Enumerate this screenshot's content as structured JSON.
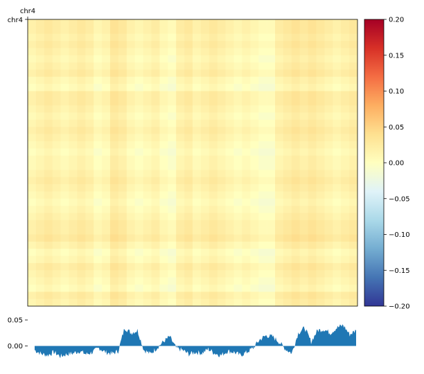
{
  "chart_data": [
    {
      "type": "heatmap",
      "region": "chr4",
      "x_label": "chr4",
      "y_label": "chr4",
      "value_range": [
        -0.2,
        0.2
      ],
      "colormap": "RdYlBu_r",
      "pattern": "checkerboard of weak positive (pale orange) and weak negative (pale blue) stripes; values mostly within -0.03 to 0.05",
      "row_profile": [
        0.02,
        0.02,
        0.01,
        0.02,
        0.01,
        0.0,
        0.01,
        0.02,
        0.0,
        -0.01,
        0.02,
        0.02,
        0.01,
        0.0,
        0.01,
        0.02,
        0.01,
        0.0,
        -0.01,
        0.0,
        0.0,
        0.01,
        0.02,
        0.01,
        0.0,
        -0.01,
        0.0,
        0.01,
        0.02,
        0.02,
        0.03,
        0.01,
        -0.01,
        0.0,
        0.02,
        0.01,
        0.0,
        -0.01,
        0.02,
        0.01
      ],
      "col_profile": [
        0.01,
        0.02,
        0.03,
        0.02,
        0.01,
        0.02,
        0.03,
        0.02,
        0.0,
        0.01,
        0.04,
        0.03,
        0.01,
        0.0,
        0.01,
        0.02,
        0.0,
        -0.01,
        0.02,
        0.03,
        0.01,
        0.02,
        0.03,
        0.02,
        0.01,
        0.0,
        0.01,
        0.0,
        -0.01,
        -0.01,
        0.02,
        0.03,
        0.04,
        0.03,
        0.04,
        0.03,
        0.02,
        0.01,
        0.02,
        0.03
      ]
    },
    {
      "type": "colorbar",
      "range": [
        -0.2,
        0.2
      ],
      "ticks": [
        "0.20",
        "0.15",
        "0.10",
        "0.05",
        "0.00",
        "−0.05",
        "−0.10",
        "−0.15",
        "−0.20"
      ],
      "colors": [
        "#a50026",
        "#d73027",
        "#f46d43",
        "#fdae61",
        "#fee090",
        "#ffffbf",
        "#e0f3f8",
        "#abd9e9",
        "#74add1",
        "#4575b4",
        "#313695"
      ]
    },
    {
      "type": "area",
      "ylim": [
        -0.03,
        0.05
      ],
      "yticks": [
        "0.05",
        "0.00"
      ],
      "color": "#1f77b4",
      "x": [
        0,
        2,
        4,
        6,
        8,
        10,
        12,
        14,
        16,
        18,
        20,
        22,
        24,
        26,
        28,
        30,
        32,
        34,
        36,
        38,
        40,
        42,
        44,
        46,
        48,
        50,
        52,
        54,
        56,
        58,
        60,
        62,
        64,
        66,
        68,
        70,
        72,
        74,
        76,
        78,
        80,
        82,
        84,
        86,
        88,
        90,
        92,
        94,
        96,
        98,
        100
      ],
      "values": [
        -0.008,
        -0.015,
        -0.018,
        -0.012,
        -0.02,
        -0.016,
        -0.014,
        -0.01,
        -0.016,
        -0.012,
        -0.004,
        -0.012,
        -0.015,
        -0.01,
        0.035,
        0.025,
        0.03,
        -0.008,
        -0.015,
        -0.004,
        0.008,
        0.018,
        -0.004,
        -0.008,
        -0.016,
        -0.012,
        -0.014,
        -0.006,
        -0.014,
        -0.018,
        -0.01,
        -0.012,
        -0.018,
        -0.012,
        -0.004,
        0.012,
        0.02,
        0.018,
        0.008,
        -0.006,
        -0.014,
        0.025,
        0.035,
        0.008,
        0.03,
        0.032,
        0.025,
        0.035,
        0.04,
        0.022,
        0.03
      ]
    }
  ]
}
